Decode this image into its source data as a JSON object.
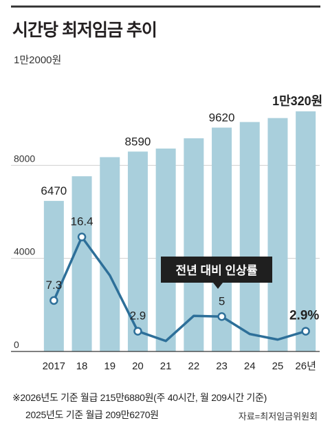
{
  "header": {
    "title": "시간당 최저임금 추이",
    "unit": "1만2000원"
  },
  "chart_data": {
    "type": "bar",
    "categories": [
      "2017",
      "18",
      "19",
      "20",
      "21",
      "22",
      "23",
      "24",
      "25",
      "26년"
    ],
    "values": [
      6470,
      7530,
      8350,
      8590,
      8720,
      9160,
      9620,
      9860,
      10030,
      10320
    ],
    "value_labels": [
      "6470",
      "",
      "",
      "8590",
      "",
      "",
      "9620",
      "",
      "",
      "1만320원"
    ],
    "ylim": [
      0,
      12000
    ],
    "yticks": [
      0,
      4000,
      8000
    ],
    "ytick_labels": [
      "0",
      "4000",
      "8000"
    ],
    "grid": true,
    "overlay_line": {
      "name": "전년 대비 인상률",
      "values": [
        7.3,
        16.4,
        10.9,
        2.9,
        1.5,
        5.1,
        5.0,
        2.5,
        1.7,
        2.9
      ],
      "point_labels": [
        "7.3",
        "16.4",
        "",
        "2.9",
        "",
        "",
        "5",
        "",
        "",
        "2.9%"
      ],
      "ylim": [
        0,
        40
      ]
    }
  },
  "footer": {
    "note1": "※2026년도 기준 월급 215만6880원(주 40시간, 월 209시간 기준)",
    "note2": "2025년도 기준 월급 209만6270원",
    "source": "자료=최저임금위원회"
  },
  "colors": {
    "bar": "#a9cfdc",
    "line": "#2d6f99",
    "grid": "#cfcfcf",
    "axis": "#333333",
    "callout_bg": "#1f1f1f",
    "callout_text": "#ffffff"
  }
}
